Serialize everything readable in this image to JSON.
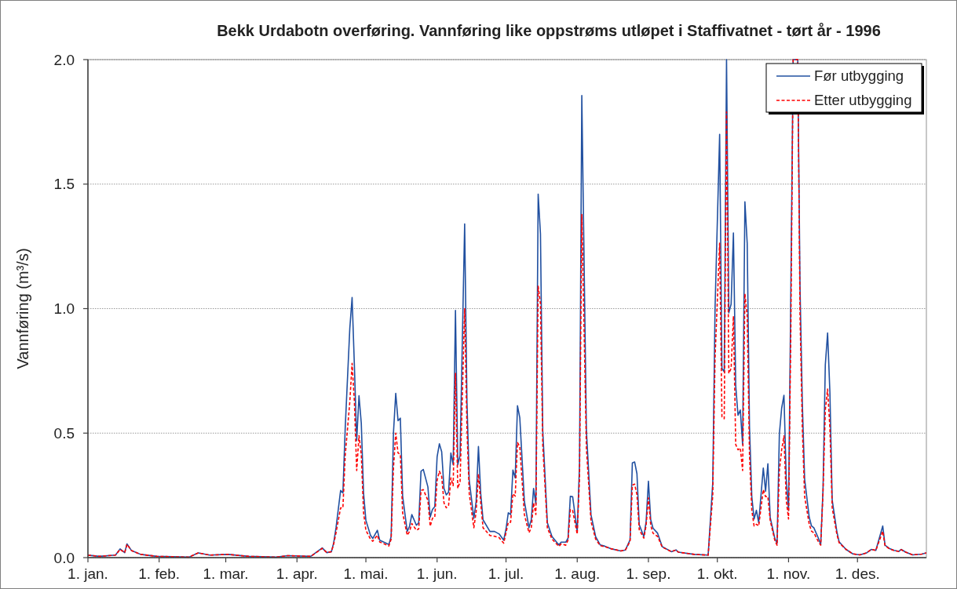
{
  "chart_data": {
    "type": "line",
    "title": "Bekk Urdabotn overføring. Vannføring like oppstrøms utløpet i Staffivatnet - tørt år - 1996",
    "ylabel": "Vannføring (m³/s)",
    "x": [
      "1996-01-01",
      "1996-01-06",
      "1996-01-13",
      "1996-01-15",
      "1996-01-17",
      "1996-01-18",
      "1996-01-20",
      "1996-01-24",
      "1996-01-31",
      "1996-02-14",
      "1996-02-18",
      "1996-02-23",
      "1996-03-02",
      "1996-03-11",
      "1996-03-23",
      "1996-03-28",
      "1996-04-07",
      "1996-04-12",
      "1996-04-14",
      "1996-04-16",
      "1996-04-17",
      "1996-04-18",
      "1996-04-20",
      "1996-04-21",
      "1996-04-22",
      "1996-04-24",
      "1996-04-25",
      "1996-04-26",
      "1996-04-27",
      "1996-04-28",
      "1996-04-29",
      "1996-04-30",
      "1996-05-01",
      "1996-05-03",
      "1996-05-04",
      "1996-05-06",
      "1996-05-07",
      "1996-05-11",
      "1996-05-12",
      "1996-05-13",
      "1996-05-14",
      "1996-05-15",
      "1996-05-16",
      "1996-05-17",
      "1996-05-19",
      "1996-05-20",
      "1996-05-21",
      "1996-05-23",
      "1996-05-24",
      "1996-05-25",
      "1996-05-26",
      "1996-05-28",
      "1996-05-29",
      "1996-05-30",
      "1996-05-31",
      "1996-06-01",
      "1996-06-02",
      "1996-06-03",
      "1996-06-04",
      "1996-06-05",
      "1996-06-06",
      "1996-06-07",
      "1996-06-08",
      "1996-06-09",
      "1996-06-10",
      "1996-06-11",
      "1996-06-13",
      "1996-06-14",
      "1996-06-15",
      "1996-06-17",
      "1996-06-18",
      "1996-06-19",
      "1996-06-20",
      "1996-06-21",
      "1996-06-24",
      "1996-06-26",
      "1996-06-28",
      "1996-06-30",
      "1996-07-01",
      "1996-07-02",
      "1996-07-03",
      "1996-07-04",
      "1996-07-05",
      "1996-07-06",
      "1996-07-07",
      "1996-07-09",
      "1996-07-11",
      "1996-07-12",
      "1996-07-13",
      "1996-07-14",
      "1996-07-15",
      "1996-07-16",
      "1996-07-17",
      "1996-07-19",
      "1996-07-21",
      "1996-07-24",
      "1996-07-25",
      "1996-07-27",
      "1996-07-28",
      "1996-07-29",
      "1996-07-30",
      "1996-08-01",
      "1996-08-02",
      "1996-08-03",
      "1996-08-05",
      "1996-08-07",
      "1996-08-09",
      "1996-08-11",
      "1996-08-13",
      "1996-08-16",
      "1996-08-20",
      "1996-08-22",
      "1996-08-24",
      "1996-08-25",
      "1996-08-26",
      "1996-08-27",
      "1996-08-28",
      "1996-08-30",
      "1996-08-31",
      "1996-09-01",
      "1996-09-02",
      "1996-09-03",
      "1996-09-05",
      "1996-09-07",
      "1996-09-11",
      "1996-09-13",
      "1996-09-14",
      "1996-09-21",
      "1996-09-27",
      "1996-09-29",
      "1996-09-30",
      "1996-10-02",
      "1996-10-03",
      "1996-10-04",
      "1996-10-05",
      "1996-10-06",
      "1996-10-07",
      "1996-10-08",
      "1996-10-09",
      "1996-10-10",
      "1996-10-11",
      "1996-10-12",
      "1996-10-13",
      "1996-10-14",
      "1996-10-15",
      "1996-10-16",
      "1996-10-17",
      "1996-10-18",
      "1996-10-19",
      "1996-10-21",
      "1996-10-22",
      "1996-10-23",
      "1996-10-24",
      "1996-10-26",
      "1996-10-27",
      "1996-10-28",
      "1996-10-29",
      "1996-10-30",
      "1996-10-31",
      "1996-11-01",
      "1996-11-02",
      "1996-11-03",
      "1996-11-05",
      "1996-11-06",
      "1996-11-07",
      "1996-11-08",
      "1996-11-10",
      "1996-11-11",
      "1996-11-12",
      "1996-11-14",
      "1996-11-15",
      "1996-11-16",
      "1996-11-17",
      "1996-11-18",
      "1996-11-19",
      "1996-11-20",
      "1996-11-22",
      "1996-11-23",
      "1996-11-26",
      "1996-11-29",
      "1996-12-02",
      "1996-12-05",
      "1996-12-07",
      "1996-12-09",
      "1996-12-12",
      "1996-12-13",
      "1996-12-15",
      "1996-12-17",
      "1996-12-19",
      "1996-12-20",
      "1996-12-22",
      "1996-12-25",
      "1996-12-29",
      "1996-12-31"
    ],
    "series": [
      {
        "name": "Før utbygging",
        "color": "#2150a0",
        "line_style": "solid",
        "values": [
          0.01,
          0.005,
          0.01,
          0.035,
          0.02,
          0.055,
          0.028,
          0.013,
          0.005,
          0.002,
          0.019,
          0.01,
          0.013,
          0.005,
          0.002,
          0.008,
          0.005,
          0.039,
          0.02,
          0.024,
          0.06,
          0.12,
          0.27,
          0.26,
          0.52,
          0.92,
          1.045,
          0.77,
          0.47,
          0.65,
          0.54,
          0.257,
          0.15,
          0.09,
          0.077,
          0.11,
          0.07,
          0.053,
          0.084,
          0.5,
          0.66,
          0.55,
          0.56,
          0.247,
          0.105,
          0.126,
          0.173,
          0.13,
          0.14,
          0.347,
          0.354,
          0.284,
          0.163,
          0.194,
          0.205,
          0.404,
          0.457,
          0.425,
          0.278,
          0.252,
          0.263,
          0.42,
          0.373,
          0.993,
          0.373,
          0.41,
          1.34,
          0.625,
          0.31,
          0.158,
          0.226,
          0.446,
          0.257,
          0.152,
          0.105,
          0.105,
          0.095,
          0.07,
          0.115,
          0.18,
          0.173,
          0.352,
          0.32,
          0.61,
          0.562,
          0.226,
          0.12,
          0.152,
          0.278,
          0.215,
          1.46,
          1.3,
          0.51,
          0.14,
          0.085,
          0.051,
          0.062,
          0.062,
          0.078,
          0.246,
          0.245,
          0.105,
          0.374,
          1.856,
          0.509,
          0.172,
          0.085,
          0.051,
          0.046,
          0.035,
          0.027,
          0.031,
          0.071,
          0.38,
          0.384,
          0.337,
          0.132,
          0.085,
          0.145,
          0.307,
          0.152,
          0.118,
          0.098,
          0.044,
          0.024,
          0.031,
          0.022,
          0.013,
          0.01,
          0.3,
          1.0,
          1.7,
          0.76,
          0.746,
          2.0,
          0.983,
          1.018,
          1.304,
          0.69,
          0.572,
          0.593,
          0.454,
          1.429,
          1.262,
          0.524,
          0.245,
          0.155,
          0.19,
          0.14,
          0.36,
          0.266,
          0.377,
          0.162,
          0.078,
          0.057,
          0.496,
          0.6,
          0.652,
          0.315,
          0.19,
          1.08,
          2.0,
          2.0,
          1.08,
          0.62,
          0.315,
          0.162,
          0.127,
          0.12,
          0.078,
          0.053,
          0.273,
          0.774,
          0.902,
          0.663,
          0.231,
          0.106,
          0.064,
          0.033,
          0.015,
          0.011,
          0.019,
          0.033,
          0.029,
          0.127,
          0.05,
          0.036,
          0.029,
          0.025,
          0.033,
          0.022,
          0.011,
          0.014,
          0.019
        ]
      },
      {
        "name": "Etter utbygging",
        "color": "#ff0000",
        "line_style": "dashed",
        "values": [
          0.01,
          0.005,
          0.01,
          0.033,
          0.02,
          0.053,
          0.028,
          0.013,
          0.005,
          0.002,
          0.019,
          0.01,
          0.013,
          0.005,
          0.002,
          0.008,
          0.005,
          0.037,
          0.02,
          0.024,
          0.055,
          0.1,
          0.2,
          0.2,
          0.41,
          0.625,
          0.78,
          0.625,
          0.35,
          0.49,
          0.415,
          0.18,
          0.11,
          0.074,
          0.066,
          0.09,
          0.063,
          0.047,
          0.074,
          0.36,
          0.5,
          0.42,
          0.415,
          0.18,
          0.09,
          0.105,
          0.137,
          0.11,
          0.115,
          0.27,
          0.273,
          0.23,
          0.126,
          0.158,
          0.163,
          0.31,
          0.347,
          0.326,
          0.22,
          0.2,
          0.21,
          0.32,
          0.289,
          0.74,
          0.278,
          0.305,
          1.0,
          0.52,
          0.257,
          0.12,
          0.184,
          0.336,
          0.22,
          0.12,
          0.089,
          0.086,
          0.08,
          0.058,
          0.1,
          0.142,
          0.142,
          0.257,
          0.247,
          0.462,
          0.446,
          0.173,
          0.1,
          0.12,
          0.22,
          0.173,
          1.09,
          1.02,
          0.45,
          0.12,
          0.075,
          0.045,
          0.055,
          0.05,
          0.07,
          0.193,
          0.19,
          0.094,
          0.32,
          1.378,
          0.44,
          0.145,
          0.075,
          0.048,
          0.044,
          0.035,
          0.027,
          0.031,
          0.065,
          0.291,
          0.295,
          0.253,
          0.112,
          0.078,
          0.13,
          0.24,
          0.13,
          0.098,
          0.085,
          0.042,
          0.024,
          0.031,
          0.022,
          0.013,
          0.01,
          0.25,
          0.8,
          1.263,
          0.565,
          0.558,
          1.79,
          0.74,
          0.76,
          0.97,
          0.454,
          0.433,
          0.44,
          0.35,
          1.06,
          0.97,
          0.412,
          0.19,
          0.127,
          0.134,
          0.127,
          0.273,
          0.245,
          0.245,
          0.15,
          0.07,
          0.05,
          0.35,
          0.433,
          0.489,
          0.23,
          0.155,
          0.914,
          2.0,
          2.0,
          0.97,
          0.52,
          0.245,
          0.134,
          0.106,
          0.1,
          0.064,
          0.05,
          0.259,
          0.593,
          0.677,
          0.52,
          0.2,
          0.095,
          0.06,
          0.033,
          0.015,
          0.011,
          0.019,
          0.033,
          0.029,
          0.106,
          0.048,
          0.035,
          0.028,
          0.025,
          0.032,
          0.022,
          0.011,
          0.014,
          0.019
        ]
      }
    ],
    "xlim": [
      "1996-01-01",
      "1996-12-31"
    ],
    "xticks": [
      {
        "value": "1996-01-01",
        "label": "1. jan."
      },
      {
        "value": "1996-02-01",
        "label": "1. feb."
      },
      {
        "value": "1996-03-01",
        "label": "1. mar."
      },
      {
        "value": "1996-04-01",
        "label": "1. apr."
      },
      {
        "value": "1996-05-01",
        "label": "1. mai."
      },
      {
        "value": "1996-06-01",
        "label": "1. jun."
      },
      {
        "value": "1996-07-01",
        "label": "1. jul."
      },
      {
        "value": "1996-08-01",
        "label": "1. aug."
      },
      {
        "value": "1996-09-01",
        "label": "1. sep."
      },
      {
        "value": "1996-10-01",
        "label": "1. okt."
      },
      {
        "value": "1996-11-01",
        "label": "1. nov."
      },
      {
        "value": "1996-12-01",
        "label": "1. des."
      }
    ],
    "ylim": [
      0,
      2
    ],
    "yticks": [
      {
        "value": 0,
        "label": "0.0"
      },
      {
        "value": 0.5,
        "label": "0.5"
      },
      {
        "value": 1,
        "label": "1.0"
      },
      {
        "value": 1.5,
        "label": "1.5"
      },
      {
        "value": 2,
        "label": "2.0"
      }
    ],
    "grid": "y",
    "legend": "top right"
  }
}
